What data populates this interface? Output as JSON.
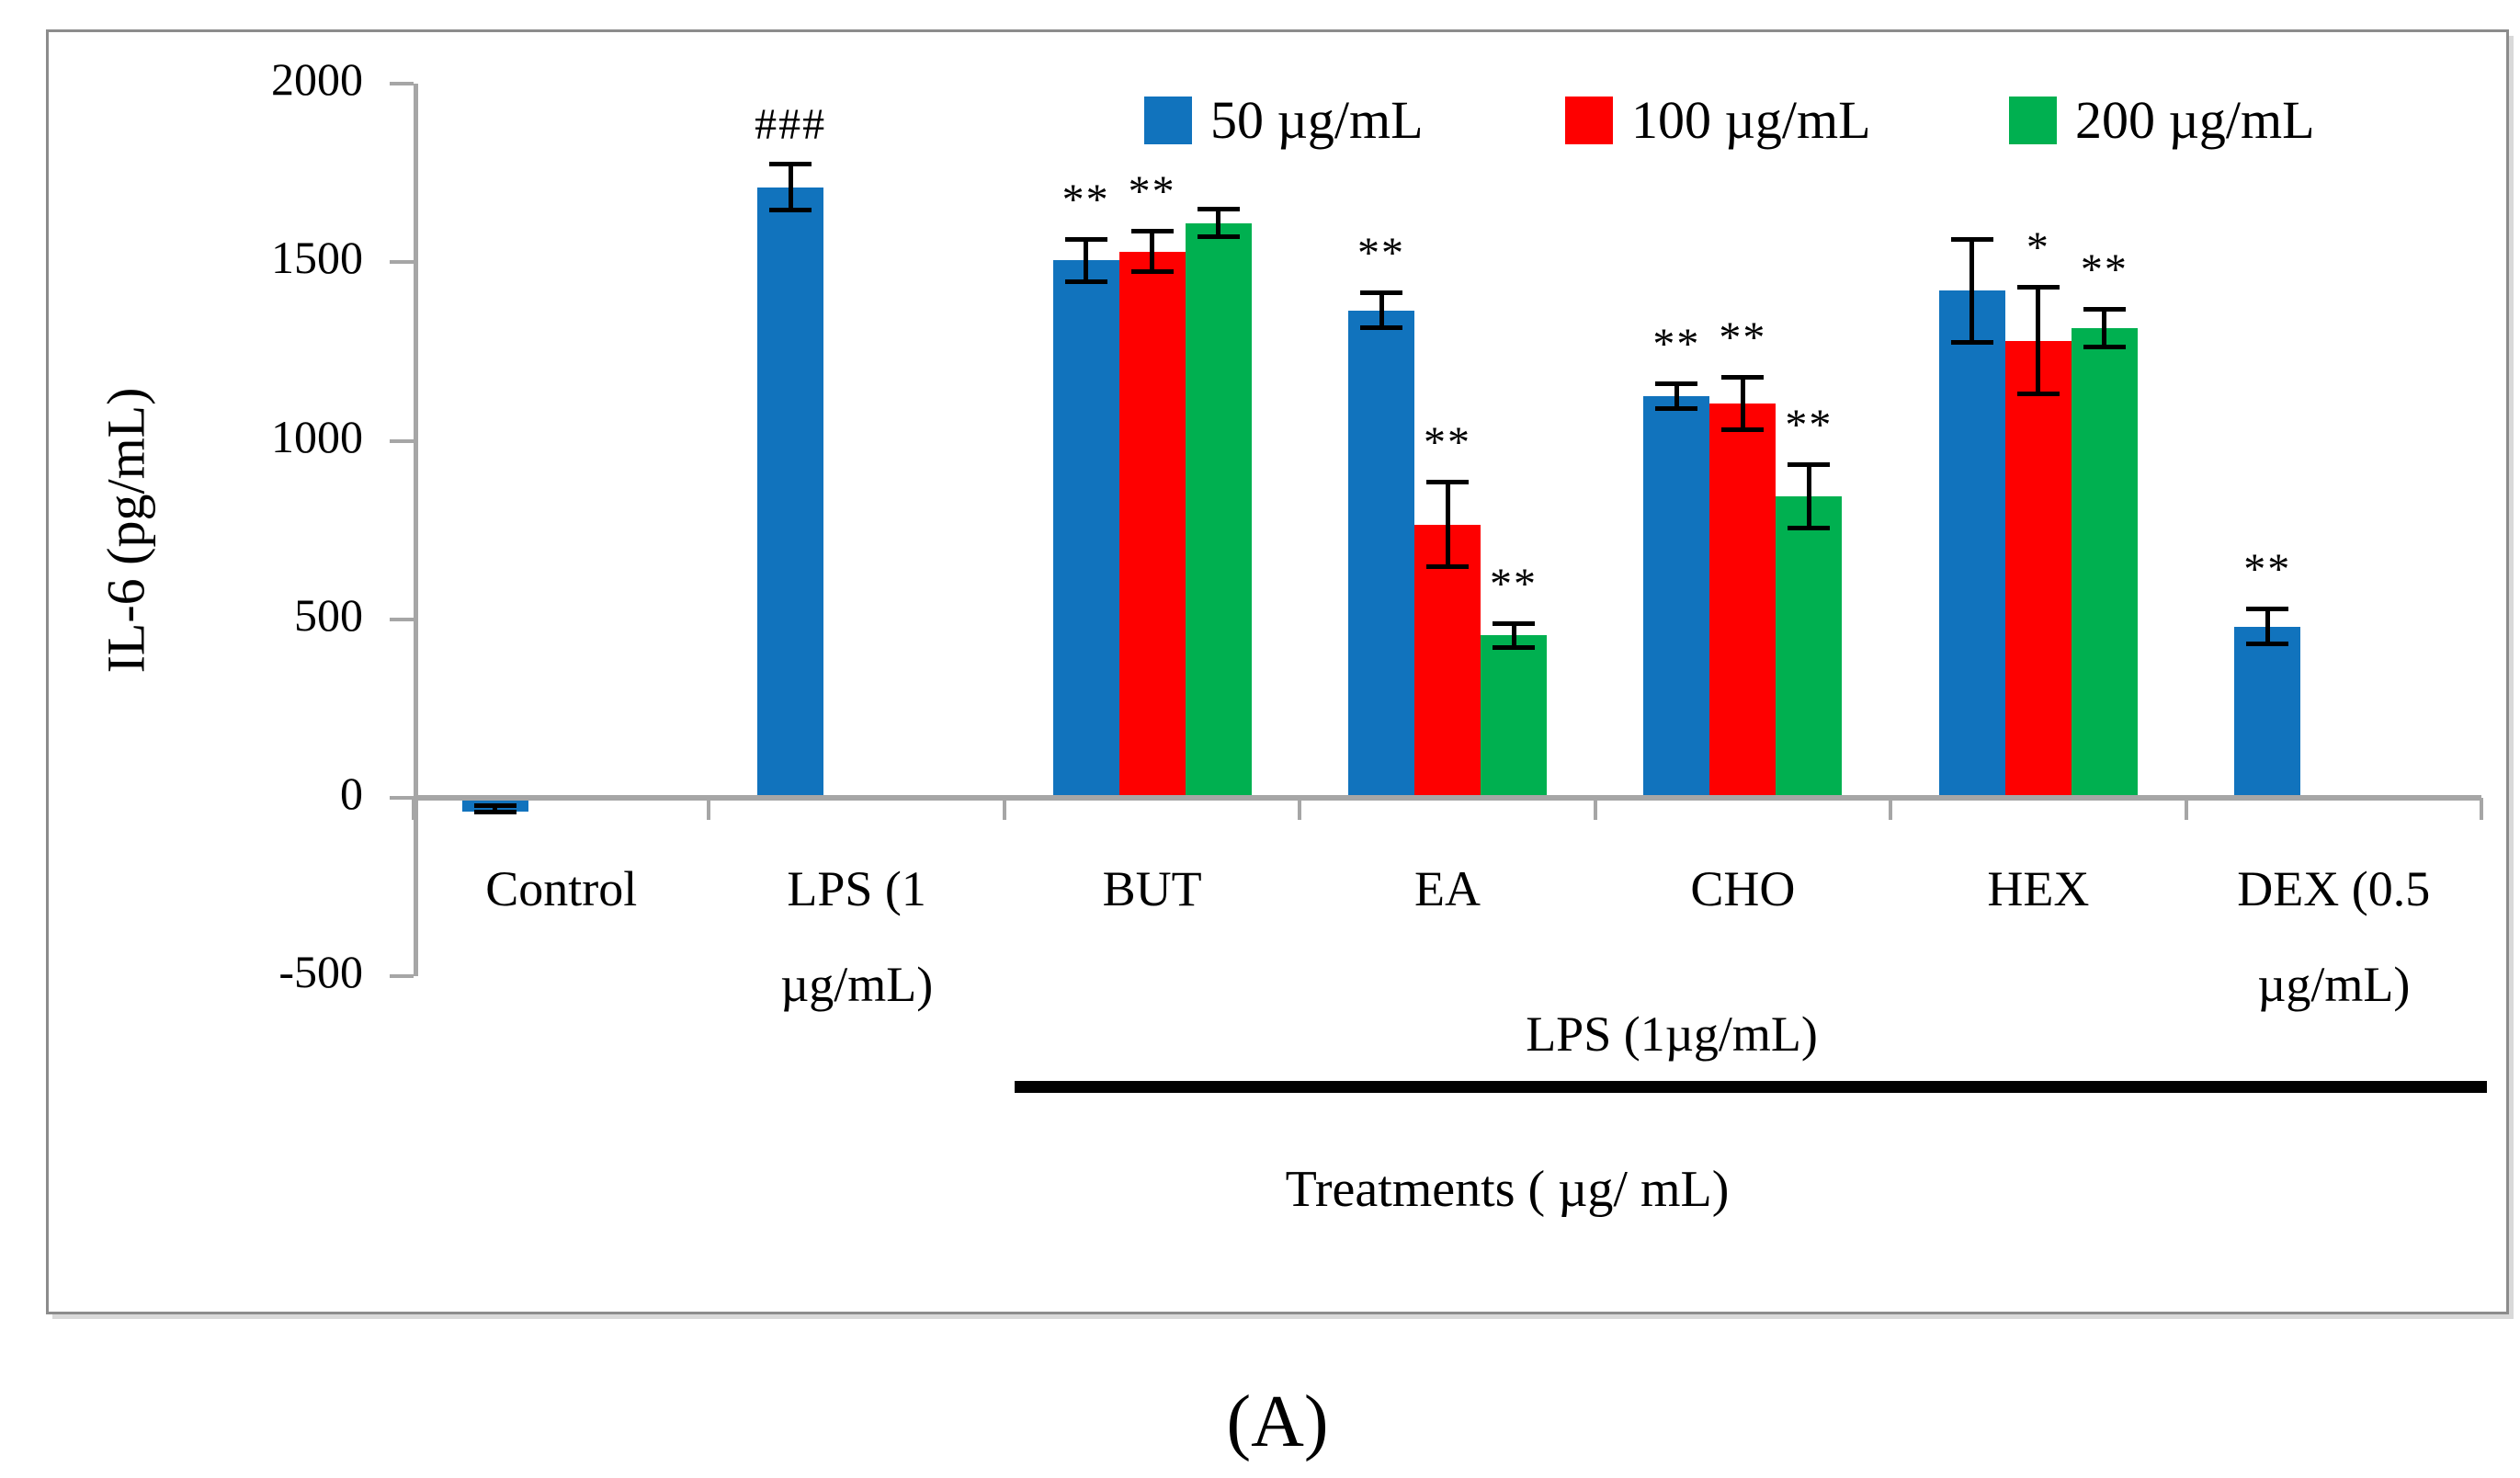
{
  "figure": {
    "caption": "(A)"
  },
  "chart_data": {
    "type": "bar",
    "title": "",
    "ylabel": "IL-6 (pg/mL)",
    "xlabel": "Treatments ( µg/ mL)",
    "ylim": [
      -500,
      2000
    ],
    "yticks": [
      2000,
      1500,
      1000,
      500,
      0,
      -500
    ],
    "grid": false,
    "legend_position": "top",
    "axis_color": "#a6a6a6",
    "error_bar_color": "#000000",
    "categories": [
      "Control",
      "LPS (1 µg/mL)",
      "BUT",
      "EA",
      "CHO",
      "HEX",
      "DEX (0.5 µg/mL)"
    ],
    "category_label_lines": [
      [
        "Control"
      ],
      [
        "LPS (1",
        "µg/mL)"
      ],
      [
        "BUT"
      ],
      [
        "EA"
      ],
      [
        "CHO"
      ],
      [
        "HEX"
      ],
      [
        "DEX (0.5",
        "µg/mL)"
      ]
    ],
    "group_annotation": {
      "label": "LPS (1µg/mL)",
      "applies_to": [
        "BUT",
        "EA",
        "CHO",
        "HEX",
        "DEX (0.5 µg/mL)"
      ],
      "underline": true
    },
    "series": [
      {
        "name": "50 µg/mL",
        "color": "#1173bd",
        "values": [
          -30,
          1710,
          1505,
          1365,
          1125,
          1420,
          480
        ],
        "errors": [
          10,
          65,
          60,
          50,
          35,
          145,
          50
        ],
        "sig_labels": [
          "",
          "###",
          "**",
          "**",
          "**",
          "",
          "**"
        ]
      },
      {
        "name": "100 µg/mL",
        "color": "#fe0000",
        "values": [
          null,
          null,
          1530,
          765,
          1105,
          1280,
          null
        ],
        "errors": [
          null,
          null,
          58,
          120,
          75,
          150,
          null
        ],
        "sig_labels": [
          null,
          null,
          "**",
          "**",
          "**",
          "*",
          null
        ]
      },
      {
        "name": "200 µg/mL",
        "color": "#00b050",
        "values": [
          null,
          null,
          1610,
          455,
          845,
          1315,
          null
        ],
        "errors": [
          null,
          null,
          40,
          35,
          90,
          55,
          null
        ],
        "sig_labels": [
          null,
          null,
          "",
          "**",
          "**",
          "**",
          null
        ]
      }
    ]
  }
}
